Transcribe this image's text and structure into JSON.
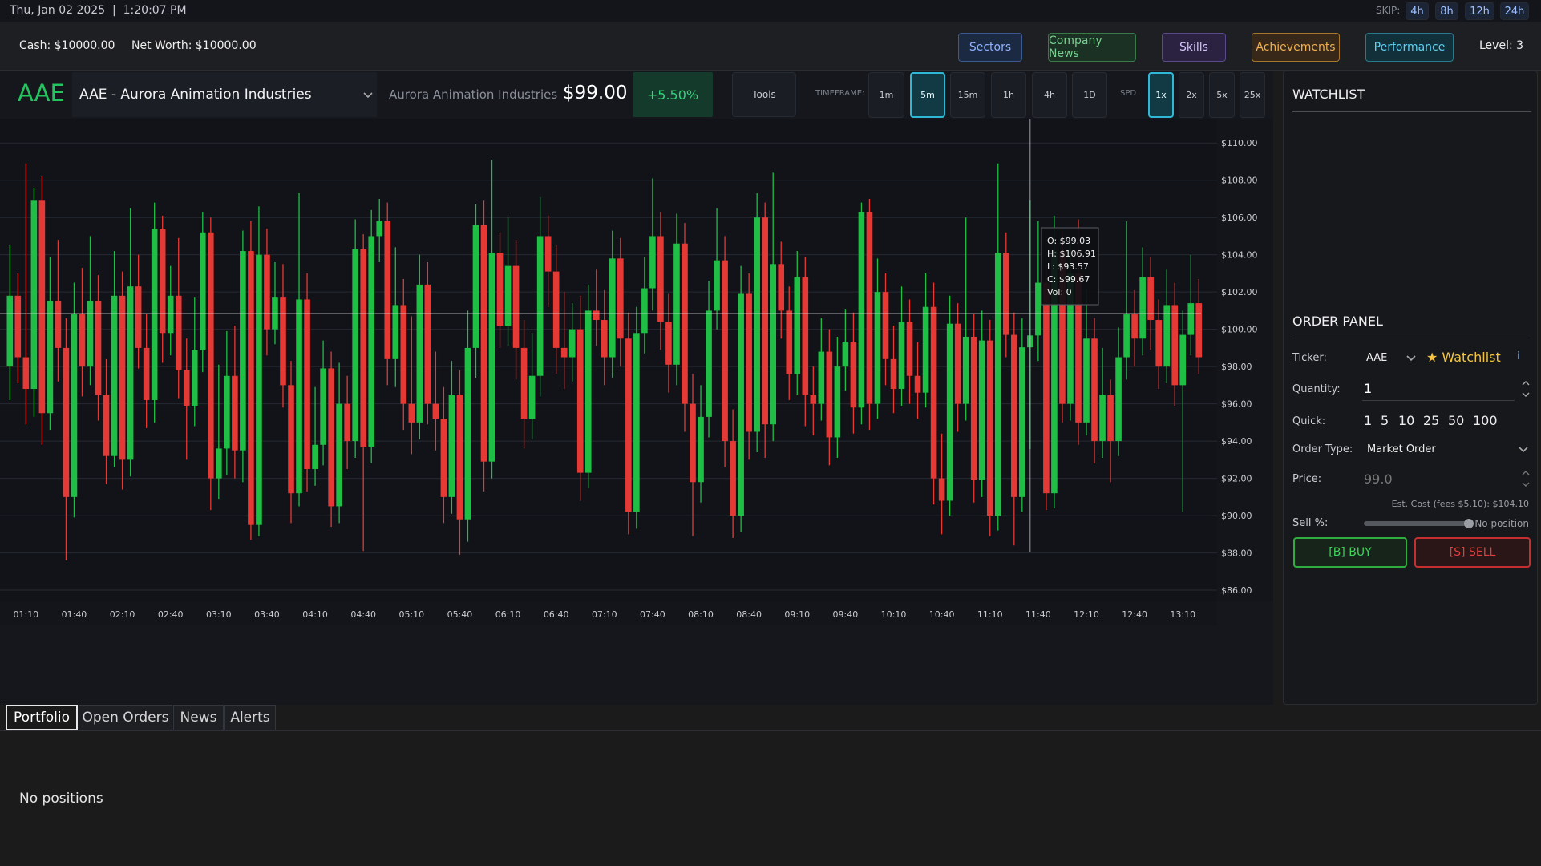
{
  "status_bar": {
    "datetime": "Thu, Jan 02 2025  |  1:20:07 PM",
    "skip_label": "SKIP:",
    "skip_options": [
      "4h",
      "8h",
      "12h",
      "24h"
    ]
  },
  "account_bar": {
    "cash": "Cash: $10000.00",
    "net_worth": "Net Worth: $10000.00",
    "buttons": [
      "Sectors",
      "Company News",
      "Skills",
      "Achievements",
      "Performance"
    ],
    "level": "Level: 3"
  },
  "ticker_bar": {
    "symbol": "AAE",
    "selector": "AAE - Aurora Animation Industries",
    "company": "Aurora Animation Industries",
    "price": "$99.00",
    "change": "+5.50%",
    "tools": "Tools",
    "timeframe_label": "TIMEFRAME:",
    "timeframes": [
      "1m",
      "5m",
      "15m",
      "1h",
      "4h",
      "1D"
    ],
    "speed_label": "SPD",
    "speeds": [
      "1x",
      "2x",
      "5x",
      "25x"
    ]
  },
  "chart_data": {
    "type": "candlestick",
    "up_color": "#1fbf45",
    "down_color": "#e53935",
    "grid": true,
    "categories": [
      null,
      null,
      "01:10",
      null,
      null,
      null,
      null,
      null,
      "01:40",
      null,
      null,
      null,
      null,
      null,
      "02:10",
      null,
      null,
      null,
      null,
      null,
      "02:40",
      null,
      null,
      null,
      null,
      null,
      "03:10",
      null,
      null,
      null,
      null,
      null,
      "03:40",
      null,
      null,
      null,
      null,
      null,
      "04:10",
      null,
      null,
      null,
      null,
      null,
      "04:40",
      null,
      null,
      null,
      null,
      null,
      "05:10",
      null,
      null,
      null,
      null,
      null,
      "05:40",
      null,
      null,
      null,
      null,
      null,
      "06:10",
      null,
      null,
      null,
      null,
      null,
      "06:40",
      null,
      null,
      null,
      null,
      null,
      "07:10",
      null,
      null,
      null,
      null,
      null,
      "07:40",
      null,
      null,
      null,
      null,
      null,
      "08:10",
      null,
      null,
      null,
      null,
      null,
      "08:40",
      null,
      null,
      null,
      null,
      null,
      "09:10",
      null,
      null,
      null,
      null,
      null,
      "09:40",
      null,
      null,
      null,
      null,
      null,
      "10:10",
      null,
      null,
      null,
      null,
      null,
      "10:40",
      null,
      null,
      null,
      null,
      null,
      "11:10",
      null,
      null,
      null,
      null,
      null,
      "11:40",
      null,
      null,
      null,
      null,
      null,
      "12:10",
      null,
      null,
      null,
      null,
      null,
      "12:40",
      null,
      null,
      null,
      null,
      null,
      "13:10",
      null,
      null
    ],
    "open": [
      98.0,
      101.8,
      98.5,
      96.8,
      106.9,
      95.5,
      101.5,
      99.0,
      91.0,
      100.8,
      98.0,
      101.5,
      96.5,
      93.2,
      101.8,
      93.0,
      102.3,
      99.0,
      96.2,
      105.4,
      99.8,
      101.8,
      97.8,
      95.9,
      98.9,
      105.2,
      92.0,
      93.6,
      97.5,
      93.5,
      104.2,
      89.5,
      104.0,
      100.0,
      101.7,
      97.0,
      91.2,
      101.6,
      92.5,
      93.8,
      97.9,
      90.5,
      96.0,
      94.0,
      104.3,
      93.7,
      105.0,
      105.8,
      98.4,
      101.3,
      96.0,
      95.0,
      102.4,
      96.0,
      95.2,
      91.0,
      96.5,
      89.8,
      99.0,
      105.6,
      92.9,
      104.1,
      100.2,
      103.4,
      99.0,
      95.2,
      97.5,
      105.0,
      103.1,
      99.0,
      98.5,
      100.0,
      92.3,
      101.0,
      100.5,
      98.5,
      103.8,
      99.5,
      90.2,
      99.8,
      102.2,
      105.0,
      100.4,
      98.1,
      104.6,
      96.0,
      91.8,
      95.3,
      101.0,
      103.7,
      94.0,
      90.0,
      101.9,
      94.5,
      106.0,
      94.9,
      103.5,
      101.0,
      97.6,
      102.8,
      96.5,
      96.0,
      98.8,
      94.2,
      98.0,
      99.3,
      95.8,
      106.3,
      96.0,
      102.0,
      98.4,
      96.8,
      100.4,
      97.5,
      96.6,
      101.2,
      92.0,
      90.8,
      100.3,
      96.0,
      99.6,
      91.9,
      99.4,
      90.0,
      104.1,
      99.7,
      91.0,
      99.03,
      99.67,
      102.5,
      91.2,
      104.2,
      96.0,
      103.0,
      95.0,
      99.5,
      94.0,
      96.5,
      94.0,
      98.5,
      100.8,
      99.5,
      102.8,
      100.5,
      98.0,
      101.3,
      97.0,
      99.7,
      101.4
    ],
    "high": [
      104.5,
      103.0,
      108.9,
      107.6,
      108.2,
      103.9,
      104.8,
      100.6,
      102.5,
      103.3,
      105.0,
      102.9,
      98.4,
      104.2,
      103.1,
      106.5,
      104.0,
      100.8,
      106.8,
      106.1,
      103.4,
      104.9,
      99.5,
      101.7,
      106.3,
      106.0,
      98.1,
      99.9,
      100.2,
      105.3,
      105.8,
      106.6,
      105.4,
      103.6,
      103.5,
      98.3,
      107.3,
      103.0,
      96.9,
      99.4,
      98.8,
      98.2,
      97.5,
      105.9,
      105.1,
      106.4,
      107.0,
      106.8,
      104.4,
      102.7,
      100.7,
      104.0,
      103.6,
      98.8,
      96.9,
      98.3,
      97.8,
      101.0,
      106.7,
      106.9,
      109.1,
      105.2,
      106.0,
      104.8,
      100.5,
      99.8,
      107.1,
      106.1,
      104.5,
      102.0,
      101.4,
      101.8,
      102.4,
      103.2,
      102.1,
      105.3,
      104.9,
      100.9,
      101.2,
      103.9,
      108.1,
      106.3,
      101.9,
      106.2,
      105.7,
      97.6,
      97.0,
      102.6,
      106.5,
      105.0,
      95.7,
      103.4,
      103.0,
      107.3,
      106.8,
      108.4,
      104.7,
      102.3,
      104.2,
      103.9,
      98.0,
      100.6,
      100.0,
      99.6,
      101.1,
      100.9,
      106.8,
      107.0,
      103.8,
      103.0,
      100.2,
      102.3,
      101.6,
      99.3,
      103.0,
      102.5,
      94.4,
      101.8,
      101.4,
      106.0,
      100.8,
      101.0,
      100.5,
      108.9,
      105.2,
      100.9,
      100.6,
      106.91,
      105.8,
      103.4,
      106.1,
      105.3,
      104.7,
      105.9,
      102.2,
      100.6,
      99.0,
      97.3,
      100.1,
      105.8,
      102.1,
      104.4,
      103.9,
      101.6,
      103.2,
      102.5,
      101.0,
      104.0,
      102.7
    ],
    "low": [
      96.2,
      97.1,
      94.9,
      95.3,
      93.8,
      94.6,
      97.2,
      87.6,
      89.9,
      96.4,
      97.0,
      95.1,
      91.7,
      92.6,
      91.4,
      92.1,
      97.9,
      94.7,
      95.0,
      98.2,
      98.6,
      96.3,
      93.0,
      94.8,
      97.7,
      90.3,
      90.9,
      92.2,
      92.0,
      91.8,
      88.7,
      88.9,
      98.6,
      99.2,
      95.8,
      89.6,
      90.5,
      91.3,
      91.6,
      92.7,
      89.4,
      89.6,
      92.5,
      93.1,
      88.1,
      92.8,
      103.6,
      97.0,
      96.9,
      94.6,
      93.3,
      94.1,
      94.9,
      93.5,
      89.6,
      90.1,
      87.9,
      88.6,
      97.4,
      91.3,
      92.0,
      99.0,
      99.1,
      97.3,
      93.6,
      94.1,
      96.4,
      101.2,
      97.6,
      96.8,
      97.2,
      90.8,
      91.5,
      99.1,
      97.0,
      97.4,
      98.0,
      89.0,
      89.3,
      98.7,
      101.0,
      98.9,
      96.6,
      97.0,
      94.5,
      88.9,
      90.7,
      94.2,
      100.0,
      92.6,
      88.8,
      89.1,
      93.0,
      93.4,
      93.1,
      94.0,
      99.5,
      96.2,
      96.5,
      94.8,
      94.3,
      95.1,
      92.7,
      93.1,
      96.7,
      94.4,
      94.9,
      94.6,
      95.2,
      97.0,
      95.5,
      95.9,
      96.0,
      95.2,
      95.8,
      90.6,
      89.0,
      90.0,
      94.5,
      95.1,
      90.7,
      91.0,
      88.9,
      89.2,
      98.5,
      88.4,
      90.2,
      93.57,
      98.3,
      90.3,
      90.4,
      95.0,
      95.1,
      93.8,
      94.3,
      92.8,
      93.1,
      91.8,
      93.2,
      97.3,
      98.0,
      98.6,
      98.9,
      96.8,
      97.1,
      95.9,
      90.2,
      98.6,
      97.6
    ],
    "close": [
      101.8,
      98.5,
      96.8,
      106.9,
      95.5,
      101.5,
      99.0,
      91.0,
      100.8,
      98.0,
      101.5,
      96.5,
      93.2,
      101.8,
      93.0,
      102.3,
      99.0,
      96.2,
      105.4,
      99.8,
      101.8,
      97.8,
      95.9,
      98.9,
      105.2,
      92.0,
      93.6,
      97.5,
      93.5,
      104.2,
      89.5,
      104.0,
      100.0,
      101.7,
      97.0,
      91.2,
      101.6,
      92.5,
      93.8,
      97.9,
      90.5,
      96.0,
      94.0,
      104.3,
      93.7,
      105.0,
      105.8,
      98.4,
      101.3,
      96.0,
      95.0,
      102.4,
      96.0,
      95.2,
      91.0,
      96.5,
      89.8,
      99.0,
      105.6,
      92.9,
      104.1,
      100.2,
      103.4,
      99.0,
      95.2,
      97.5,
      105.0,
      103.1,
      99.0,
      98.5,
      100.0,
      92.3,
      101.0,
      100.5,
      98.5,
      103.8,
      99.5,
      90.2,
      99.8,
      102.2,
      105.0,
      100.4,
      98.1,
      104.6,
      96.0,
      91.8,
      95.3,
      101.0,
      103.7,
      94.0,
      90.0,
      101.9,
      94.5,
      106.0,
      94.9,
      103.5,
      101.0,
      97.6,
      102.8,
      96.5,
      96.0,
      98.8,
      94.2,
      98.0,
      99.3,
      95.8,
      106.3,
      96.0,
      102.0,
      98.4,
      96.8,
      100.4,
      97.5,
      96.6,
      101.2,
      92.0,
      90.8,
      100.3,
      96.0,
      99.6,
      91.9,
      99.4,
      90.0,
      104.1,
      99.7,
      91.0,
      99.03,
      99.67,
      102.5,
      91.2,
      104.2,
      96.0,
      103.0,
      95.0,
      99.5,
      94.0,
      96.5,
      94.0,
      98.5,
      100.8,
      99.5,
      102.8,
      100.5,
      98.0,
      101.3,
      97.0,
      99.7,
      101.4,
      98.5
    ],
    "ylim": [
      85.4,
      111.3
    ],
    "yticks": [
      {
        "value": 86,
        "label": "$86.00"
      },
      {
        "value": 88,
        "label": "$88.00"
      },
      {
        "value": 90,
        "label": "$90.00"
      },
      {
        "value": 92,
        "label": "$92.00"
      },
      {
        "value": 94,
        "label": "$94.00"
      },
      {
        "value": 96,
        "label": "$96.00"
      },
      {
        "value": 98,
        "label": "$98.00"
      },
      {
        "value": 100,
        "label": "$100.00"
      },
      {
        "value": 102,
        "label": "$102.00"
      },
      {
        "value": 104,
        "label": "$104.00"
      },
      {
        "value": 106,
        "label": "$106.00"
      },
      {
        "value": 108,
        "label": "$108.00"
      },
      {
        "value": 110,
        "label": "$110.00"
      }
    ],
    "tooltip": [
      "O: $99.03",
      "H: $106.91",
      "L: $93.57",
      "C: $99.67",
      "Vol: 0"
    ]
  },
  "side_panel": {
    "watchlist_title": "WATCHLIST",
    "order_title": "ORDER PANEL",
    "ticker_label": "Ticker:",
    "ticker_value": "AAE",
    "watchlist_toggle": "★ Watchlist",
    "info": "i",
    "quantity_label": "Quantity:",
    "quantity_value": "1",
    "quick_label": "Quick:",
    "quick_amounts": [
      1,
      5,
      10,
      25,
      50,
      100
    ],
    "order_type_label": "Order Type:",
    "order_type_value": "Market Order",
    "price_label": "Price:",
    "price_placeholder": "99.0",
    "est_cost": "Est. Cost (fees $5.10): $104.10",
    "sell_label": "Sell %:",
    "sell_status": "No position",
    "buy": "[B] BUY",
    "sell": "[S] SELL"
  },
  "tabs": [
    "Portfolio",
    "Open Orders",
    "News",
    "Alerts"
  ],
  "portfolio": {
    "empty": "No positions"
  }
}
